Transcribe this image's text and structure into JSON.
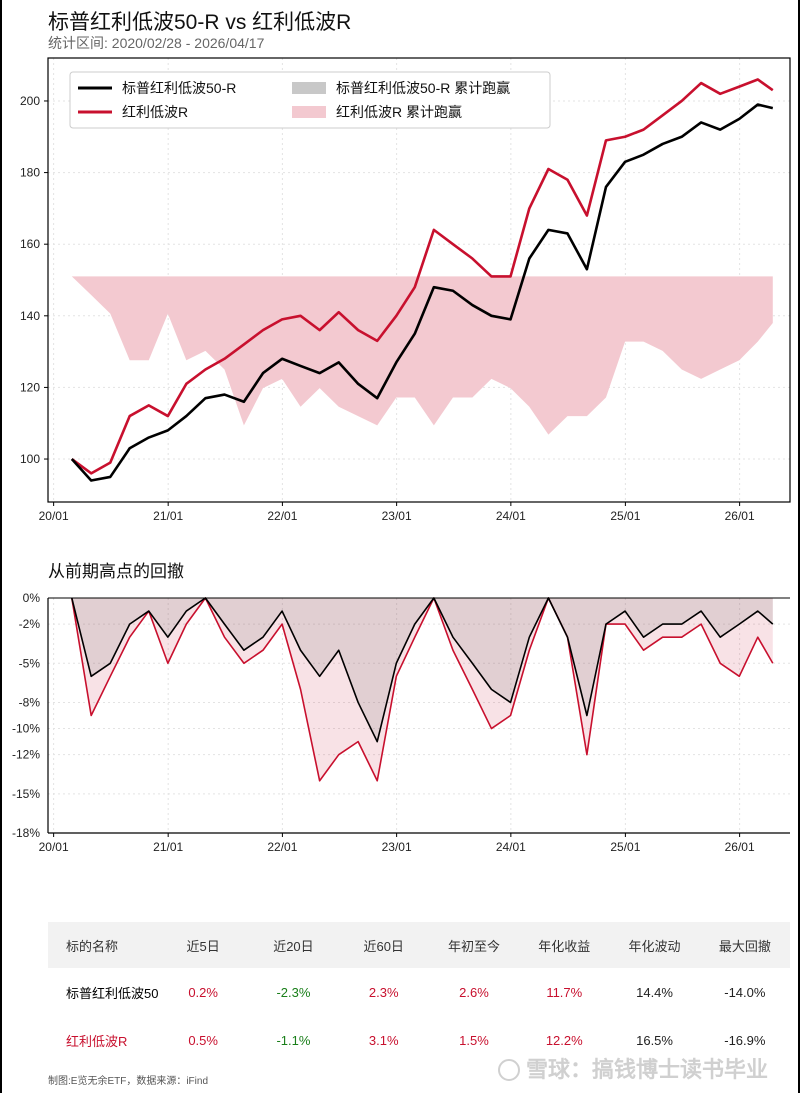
{
  "header": {
    "title": "标普红利低波50-R vs 红利低波R",
    "subtitle": "统计区间: 2020/02/28 - 2026/04/17"
  },
  "drawdown": {
    "title": "从前期高点的回撤"
  },
  "colors": {
    "series_a": "#000000",
    "series_b": "#c8102e",
    "excess_a": "#c8c8c8",
    "excess_b": "#f3c9d0",
    "up": "#c8102e",
    "down": "#1a7f1a"
  },
  "chart_data": [
    {
      "type": "line",
      "legend_position": "top-left",
      "grid": true,
      "ylim": [
        88,
        212
      ],
      "y_ticks": [
        100,
        120,
        140,
        160,
        180,
        200
      ],
      "x_ticks": [
        "20/01",
        "21/01",
        "22/01",
        "23/01",
        "24/01",
        "25/01",
        "26/01"
      ],
      "legend": [
        "标普红利低波50-R",
        "红利低波R",
        "标普红利低波50-R 累计跑赢",
        "红利低波R 累计跑赢"
      ],
      "x": [
        "2020-02-28",
        "2020-04-30",
        "2020-06-30",
        "2020-08-31",
        "2020-10-31",
        "2020-12-31",
        "2021-02-28",
        "2021-04-30",
        "2021-06-30",
        "2021-08-31",
        "2021-10-31",
        "2021-12-31",
        "2022-02-28",
        "2022-04-30",
        "2022-06-30",
        "2022-08-31",
        "2022-10-31",
        "2022-12-31",
        "2023-02-28",
        "2023-04-30",
        "2023-06-30",
        "2023-08-31",
        "2023-10-31",
        "2023-12-31",
        "2024-02-29",
        "2024-04-30",
        "2024-06-30",
        "2024-08-31",
        "2024-10-31",
        "2024-12-31",
        "2025-02-28",
        "2025-04-30",
        "2025-06-30",
        "2025-08-31",
        "2025-10-31",
        "2025-12-31",
        "2026-02-28",
        "2026-04-17"
      ],
      "series": [
        {
          "name": "标普红利低波50-R",
          "values": [
            100,
            94,
            95,
            103,
            106,
            108,
            112,
            117,
            118,
            116,
            124,
            128,
            126,
            124,
            127,
            121,
            117,
            127,
            135,
            148,
            147,
            143,
            140,
            139,
            156,
            164,
            163,
            153,
            176,
            183,
            185,
            188,
            190,
            194,
            192,
            195,
            199,
            198
          ]
        },
        {
          "name": "红利低波R",
          "values": [
            100,
            96,
            99,
            112,
            115,
            112,
            121,
            125,
            128,
            132,
            136,
            139,
            140,
            136,
            141,
            136,
            133,
            140,
            148,
            164,
            160,
            156,
            151,
            151,
            170,
            181,
            178,
            168,
            189,
            190,
            192,
            196,
            200,
            205,
            202,
            204,
            206,
            203
          ]
        }
      ]
    },
    {
      "type": "area",
      "grid": false,
      "ylim": [
        -18,
        0
      ],
      "y_ticks": [
        "0%",
        "-2%",
        "-5%",
        "-8%",
        "-10%",
        "-12%",
        "-15%",
        "-18%"
      ],
      "x_ticks": [
        "20/01",
        "21/01",
        "22/01",
        "23/01",
        "24/01",
        "25/01",
        "26/01"
      ],
      "series": [
        {
          "name": "标普红利低波50-R",
          "values": [
            0,
            -6,
            -5,
            -2,
            -1,
            -3,
            -1,
            0,
            -2,
            -4,
            -3,
            -1,
            -4,
            -6,
            -4,
            -8,
            -11,
            -5,
            -2,
            0,
            -3,
            -5,
            -7,
            -8,
            -3,
            0,
            -3,
            -9,
            -2,
            -1,
            -3,
            -2,
            -2,
            -1,
            -3,
            -2,
            -1,
            -2
          ]
        },
        {
          "name": "红利低波R",
          "values": [
            0,
            -9,
            -6,
            -3,
            -1,
            -5,
            -2,
            0,
            -3,
            -5,
            -4,
            -2,
            -7,
            -14,
            -12,
            -11,
            -14,
            -6,
            -3,
            0,
            -4,
            -7,
            -10,
            -9,
            -4,
            0,
            -3,
            -12,
            -2,
            -2,
            -4,
            -3,
            -3,
            -2,
            -5,
            -6,
            -3,
            -5
          ]
        }
      ]
    }
  ],
  "table": {
    "headers": [
      "标的名称",
      "近5日",
      "近20日",
      "近60日",
      "年初至今",
      "年化收益",
      "年化波动",
      "最大回撤"
    ],
    "rows": [
      {
        "name": "标普红利低波50-R",
        "cells": [
          "0.2%",
          "-2.3%",
          "2.3%",
          "2.6%",
          "11.7%",
          "14.4%",
          "-14.0%"
        ]
      },
      {
        "name": "红利低波R",
        "cells": [
          "0.5%",
          "-1.1%",
          "3.1%",
          "1.5%",
          "12.2%",
          "16.5%",
          "-16.9%"
        ]
      }
    ]
  },
  "footer": {
    "note": "制图:E览无余ETF，数据来源：iFind",
    "watermark": "雪球：搞钱博士读书毕业"
  }
}
